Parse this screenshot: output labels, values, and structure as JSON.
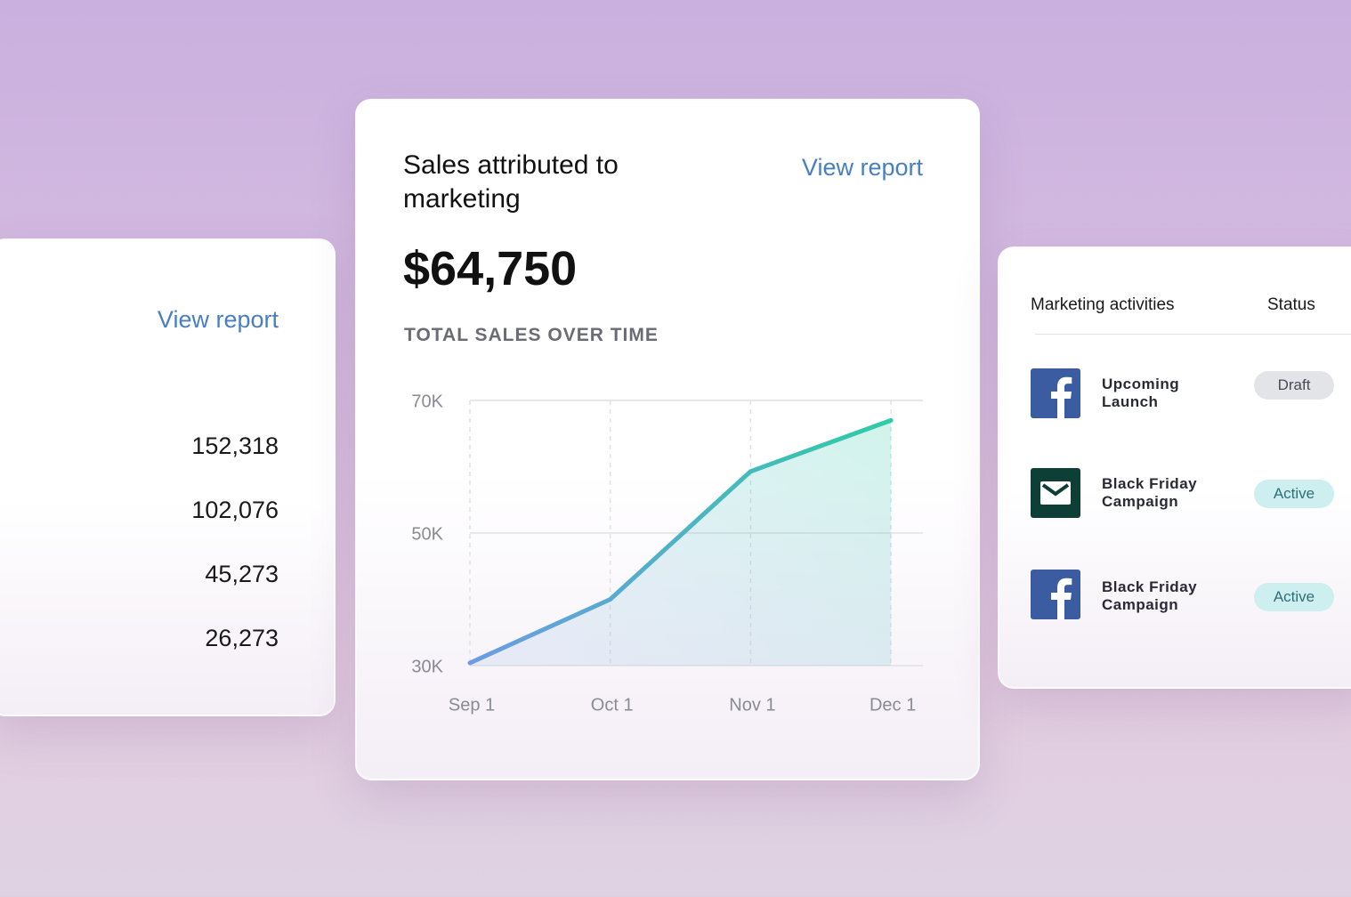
{
  "left_card": {
    "link": "View report",
    "values": [
      "152,318",
      "102,076",
      "45,273",
      "26,273"
    ]
  },
  "center_card": {
    "title": "Sales attributed to marketing",
    "link": "View report",
    "total": "$64,750",
    "chart_data": {
      "type": "line",
      "title": "TOTAL SALES OVER TIME",
      "categories": [
        "Sep 1",
        "Oct 1",
        "Nov 1",
        "Dec 1"
      ],
      "values": [
        30400,
        40000,
        59300,
        67000
      ],
      "gradient": [
        "#6d9be3",
        "#2ecba6"
      ],
      "ylim": [
        30000,
        70000
      ],
      "yticks": [
        {
          "value": 30000,
          "label": "30K"
        },
        {
          "value": 50000,
          "label": "50K"
        },
        {
          "value": 70000,
          "label": "70K"
        }
      ],
      "grid": true
    }
  },
  "right_card": {
    "header": [
      "Marketing activities",
      "Status"
    ],
    "rows": [
      {
        "name": "Upcoming Launch",
        "status": "Draft"
      },
      {
        "name": "Black Friday Campaign",
        "status": "Active"
      },
      {
        "name": "Black Friday Campaign",
        "status": "Active"
      }
    ]
  }
}
